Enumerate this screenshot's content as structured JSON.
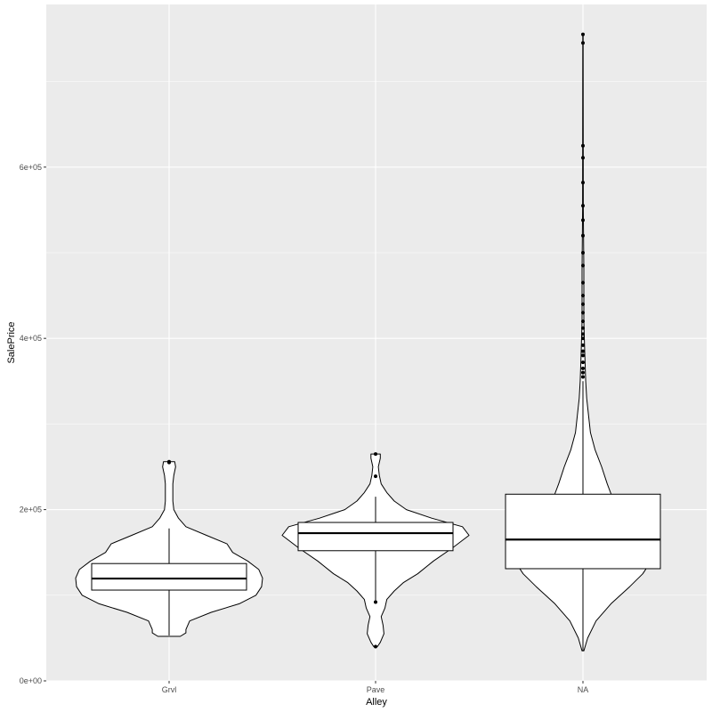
{
  "chart_data": {
    "type": "violin+boxplot",
    "xlabel": "Alley",
    "ylabel": "SalePrice",
    "categories": [
      "Grvl",
      "Pave",
      "NA"
    ],
    "ylim": [
      0,
      790000
    ],
    "y_ticks": [
      0,
      200000,
      400000,
      600000
    ],
    "y_tick_labels": [
      "0e+00",
      "2e+05",
      "4e+05",
      "6e+05"
    ],
    "grid": true,
    "legend": "none",
    "colors": {
      "panel_background": "#ebebeb",
      "grid_major": "#ffffff",
      "outline": "#000000",
      "box_fill": "#ffffff"
    },
    "boxes": [
      {
        "category": "Grvl",
        "whisker_low": 53000,
        "q1": 106000,
        "median": 119500,
        "q3": 137000,
        "whisker_high": 178000,
        "outliers": [
          255000,
          256000
        ]
      },
      {
        "category": "Pave",
        "whisker_low": 94000,
        "q1": 152000,
        "median": 172500,
        "q3": 185000,
        "whisker_high": 215000,
        "outliers": [
          40000,
          92000,
          239000,
          265000
        ]
      },
      {
        "category": "NA",
        "whisker_low": 35000,
        "q1": 131000,
        "median": 165000,
        "q3": 218000,
        "whisker_high": 350000,
        "outliers": [
          355000,
          360000,
          365000,
          372000,
          380000,
          385000,
          392000,
          400000,
          405000,
          412000,
          420000,
          430000,
          440000,
          450000,
          465000,
          485000,
          500000,
          520000,
          538000,
          555000,
          582000,
          611000,
          625000,
          745000,
          755000
        ]
      }
    ],
    "violins": [
      {
        "category": "Grvl",
        "y_min": 52000,
        "y_max": 256000,
        "profile": [
          [
            52000,
            0.12
          ],
          [
            56000,
            0.18
          ],
          [
            60000,
            0.18
          ],
          [
            70000,
            0.22
          ],
          [
            80000,
            0.45
          ],
          [
            90000,
            0.75
          ],
          [
            100000,
            0.93
          ],
          [
            110000,
            0.99
          ],
          [
            120000,
            1.0
          ],
          [
            130000,
            0.96
          ],
          [
            140000,
            0.84
          ],
          [
            150000,
            0.68
          ],
          [
            160000,
            0.62
          ],
          [
            170000,
            0.4
          ],
          [
            180000,
            0.18
          ],
          [
            190000,
            0.1
          ],
          [
            200000,
            0.05
          ],
          [
            210000,
            0.04
          ],
          [
            220000,
            0.04
          ],
          [
            230000,
            0.04
          ],
          [
            240000,
            0.05
          ],
          [
            250000,
            0.07
          ],
          [
            256000,
            0.06
          ]
        ]
      },
      {
        "category": "Pave",
        "y_min": 40000,
        "y_max": 265000,
        "profile": [
          [
            40000,
            0.02
          ],
          [
            45000,
            0.05
          ],
          [
            55000,
            0.09
          ],
          [
            65000,
            0.08
          ],
          [
            75000,
            0.06
          ],
          [
            85000,
            0.1
          ],
          [
            95000,
            0.12
          ],
          [
            105000,
            0.2
          ],
          [
            115000,
            0.3
          ],
          [
            125000,
            0.45
          ],
          [
            140000,
            0.62
          ],
          [
            155000,
            0.82
          ],
          [
            170000,
            1.0
          ],
          [
            180000,
            0.93
          ],
          [
            190000,
            0.6
          ],
          [
            200000,
            0.33
          ],
          [
            210000,
            0.2
          ],
          [
            220000,
            0.12
          ],
          [
            230000,
            0.06
          ],
          [
            240000,
            0.04
          ],
          [
            250000,
            0.03
          ],
          [
            260000,
            0.05
          ],
          [
            265000,
            0.05
          ]
        ]
      },
      {
        "category": "NA",
        "y_min": 35000,
        "y_max": 755000,
        "profile": [
          [
            35000,
            0.01
          ],
          [
            50000,
            0.05
          ],
          [
            70000,
            0.14
          ],
          [
            90000,
            0.3
          ],
          [
            110000,
            0.5
          ],
          [
            125000,
            0.64
          ],
          [
            135000,
            0.7
          ],
          [
            145000,
            0.68
          ],
          [
            155000,
            0.56
          ],
          [
            175000,
            0.45
          ],
          [
            190000,
            0.4
          ],
          [
            210000,
            0.33
          ],
          [
            230000,
            0.26
          ],
          [
            250000,
            0.2
          ],
          [
            270000,
            0.13
          ],
          [
            290000,
            0.08
          ],
          [
            310000,
            0.06
          ],
          [
            330000,
            0.04
          ],
          [
            350000,
            0.03
          ],
          [
            380000,
            0.02
          ],
          [
            420000,
            0.01
          ],
          [
            480000,
            0.01
          ],
          [
            550000,
            0.004
          ],
          [
            650000,
            0.003
          ],
          [
            755000,
            0.002
          ]
        ]
      }
    ]
  }
}
